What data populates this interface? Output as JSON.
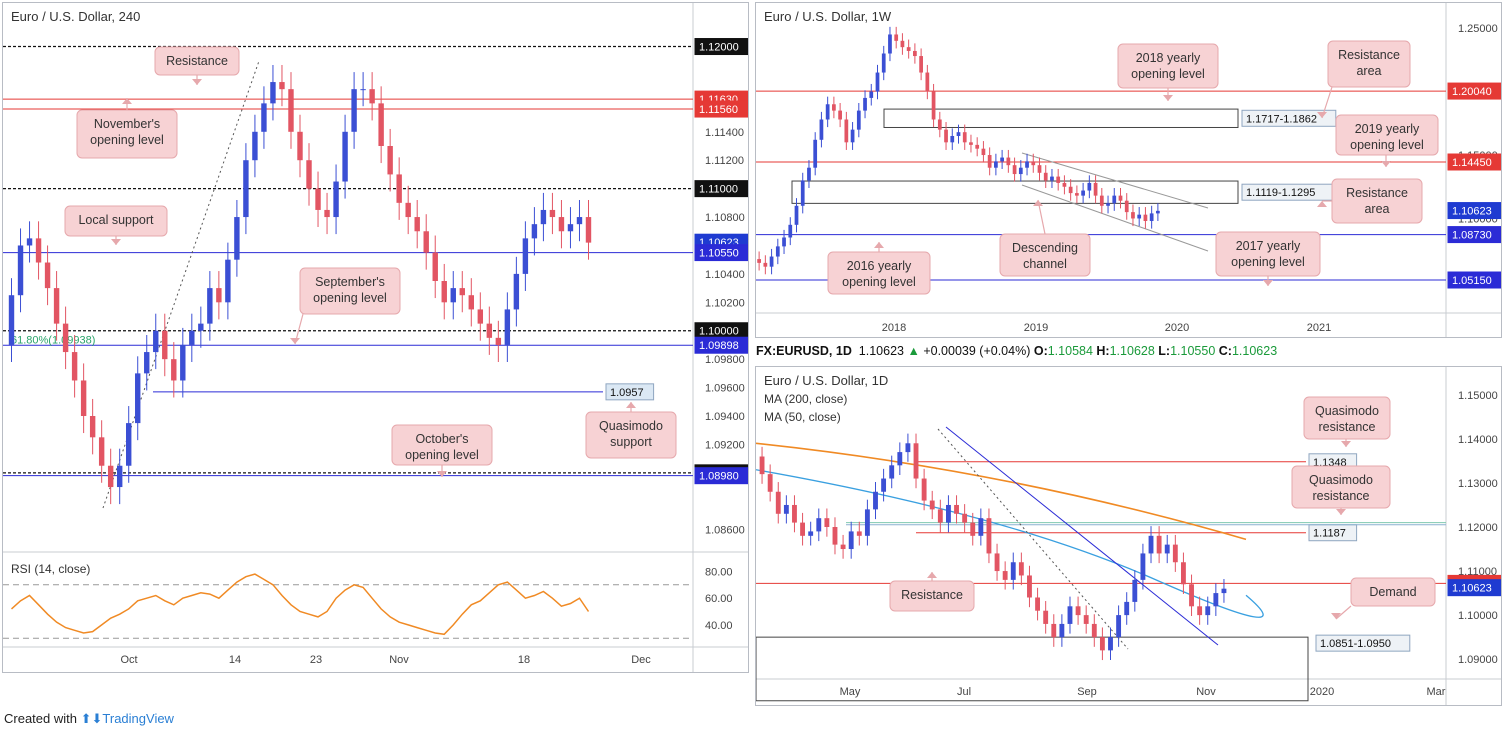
{
  "footer": {
    "created": "Created with",
    "brand": "TradingView"
  },
  "quote": {
    "symbol": "FX:EURUSD, 1D",
    "last": "1.10623",
    "change": "+0.00039 (+0.04%)",
    "o_label": "O:",
    "o": "1.10584",
    "h_label": "H:",
    "h": "1.10628",
    "l_label": "L:",
    "l": "1.10550",
    "c_label": "C:",
    "c": "1.10623"
  },
  "colors": {
    "red": "#e53935",
    "blue": "#2b2bd6",
    "candle_up": "#3b4fd4",
    "candle_down": "#e25563",
    "note_bg": "#f7d2d4",
    "rsi": "#f08a24",
    "ma200": "#f08a24",
    "ma50": "#3aa0e0"
  },
  "chart_data": [
    {
      "type": "candlestick",
      "title": "Euro / U.S. Dollar, 240",
      "ylim": [
        1.0845,
        1.1225
      ],
      "x_ticks": [
        "Oct",
        "14",
        "23",
        "Nov",
        "18",
        "Dec"
      ],
      "y_ticks": [
        "1.11400",
        "1.11200",
        "1.10800",
        "1.10400",
        "1.10200",
        "1.09800",
        "1.09600",
        "1.09400",
        "1.09200",
        "1.08600"
      ],
      "levels": [
        {
          "value": 1.12,
          "label": "1.12000",
          "style": "dotted-black"
        },
        {
          "value": 1.1163,
          "label": "1.11630",
          "style": "red"
        },
        {
          "value": 1.1156,
          "label": "1.11560",
          "style": "red"
        },
        {
          "value": 1.11,
          "label": "1.11000",
          "style": "dotted-black"
        },
        {
          "value": 1.10623,
          "label": "1.10623",
          "style": "price"
        },
        {
          "value": 1.1055,
          "label": "1.10550",
          "style": "blue"
        },
        {
          "value": 1.1,
          "label": "1.10000",
          "style": "dotted-black"
        },
        {
          "value": 1.09898,
          "label": "1.09898",
          "style": "blue"
        },
        {
          "value": 1.0957,
          "label": "1.0957",
          "style": "quasimodo"
        },
        {
          "value": 1.09,
          "label": "1.09000",
          "style": "dotted-black"
        },
        {
          "value": 1.0898,
          "label": "1.08980",
          "style": "blue"
        }
      ],
      "fib_label": "61.80%(1.09938)",
      "annotations": [
        "Resistance",
        "November's opening level",
        "Local support",
        "September's opening level",
        "Quasimodo support",
        "October's opening level"
      ],
      "closes": [
        1.1025,
        1.106,
        1.1065,
        1.1048,
        1.103,
        1.1005,
        1.0985,
        1.0965,
        1.094,
        1.0925,
        1.0905,
        1.089,
        1.0905,
        1.0935,
        1.097,
        1.0985,
        1.1,
        1.098,
        1.0965,
        1.099,
        1.1,
        1.1005,
        1.103,
        1.102,
        1.105,
        1.108,
        1.112,
        1.114,
        1.116,
        1.1175,
        1.117,
        1.114,
        1.112,
        1.11,
        1.1085,
        1.108,
        1.1105,
        1.114,
        1.117,
        1.117,
        1.116,
        1.113,
        1.111,
        1.109,
        1.108,
        1.107,
        1.1055,
        1.1035,
        1.102,
        1.103,
        1.1025,
        1.1015,
        1.1005,
        1.0995,
        1.099,
        1.1015,
        1.104,
        1.1065,
        1.1075,
        1.1085,
        1.108,
        1.107,
        1.1075,
        1.108,
        1.1062
      ],
      "rsi": {
        "label": "RSI (14, close)",
        "ylim": [
          25,
          90
        ],
        "ticks": [
          "80.00",
          "60.00",
          "40.00"
        ],
        "bands": [
          70,
          30
        ],
        "values": [
          52,
          58,
          62,
          55,
          48,
          42,
          38,
          36,
          34,
          35,
          40,
          45,
          48,
          52,
          58,
          60,
          62,
          58,
          55,
          60,
          62,
          64,
          63,
          60,
          66,
          72,
          76,
          78,
          74,
          70,
          62,
          55,
          50,
          48,
          46,
          50,
          60,
          66,
          70,
          68,
          60,
          52,
          46,
          42,
          40,
          38,
          36,
          34,
          33,
          40,
          48,
          55,
          58,
          64,
          70,
          72,
          66,
          60,
          62,
          65,
          60,
          54,
          56,
          60,
          50
        ]
      }
    },
    {
      "type": "candlestick",
      "title": "Euro / U.S. Dollar, 1W",
      "ylim": [
        1.0255,
        1.2635
      ],
      "x_ticks": [
        "2018",
        "2019",
        "2020",
        "2021"
      ],
      "y_ticks": [
        "1.25000",
        "1.20040",
        "1.15000",
        "1.10000",
        "1.05150"
      ],
      "levels": [
        {
          "value": 1.2004,
          "label": "1.20040",
          "style": "red"
        },
        {
          "value": 1.1445,
          "label": "1.14450",
          "style": "red"
        },
        {
          "value": 1.10623,
          "label": "1.10623",
          "style": "price"
        },
        {
          "value": 1.0873,
          "label": "1.08730",
          "style": "blue"
        },
        {
          "value": 1.0515,
          "label": "1.05150",
          "style": "blue"
        }
      ],
      "zones": [
        {
          "label": "1.1717-1.1862",
          "low": 1.1717,
          "high": 1.1862
        },
        {
          "label": "1.1119-1.1295",
          "low": 1.1119,
          "high": 1.1295
        }
      ],
      "annotations": [
        "2018 yearly opening level",
        "Resistance area",
        "2019 yearly opening level",
        "Resistance area",
        "Descending channel",
        "2016 yearly opening level",
        "2017 yearly opening level"
      ],
      "closes": [
        1.065,
        1.062,
        1.07,
        1.078,
        1.085,
        1.095,
        1.11,
        1.13,
        1.14,
        1.162,
        1.178,
        1.19,
        1.185,
        1.178,
        1.16,
        1.17,
        1.185,
        1.195,
        1.2,
        1.215,
        1.23,
        1.245,
        1.24,
        1.235,
        1.232,
        1.228,
        1.215,
        1.2,
        1.178,
        1.17,
        1.16,
        1.165,
        1.168,
        1.16,
        1.158,
        1.155,
        1.15,
        1.14,
        1.145,
        1.148,
        1.142,
        1.135,
        1.14,
        1.145,
        1.142,
        1.136,
        1.13,
        1.133,
        1.128,
        1.125,
        1.12,
        1.118,
        1.122,
        1.128,
        1.118,
        1.11,
        1.112,
        1.118,
        1.114,
        1.105,
        1.1,
        1.103,
        1.098,
        1.104,
        1.106
      ]
    },
    {
      "type": "candlestick",
      "title": "Euro / U.S. Dollar, 1D",
      "ma_labels": [
        "MA (200, close)",
        "MA (50, close)"
      ],
      "ylim": [
        1.0855,
        1.1545
      ],
      "x_ticks": [
        "May",
        "Jul",
        "Sep",
        "Nov",
        "2020",
        "Mar"
      ],
      "y_ticks": [
        "1.15000",
        "1.14000",
        "1.13000",
        "1.12000",
        "1.11000",
        "1.10000",
        "1.09000"
      ],
      "levels": [
        {
          "value": 1.1348,
          "label": "1.1348",
          "style": "red-box"
        },
        {
          "value": 1.1187,
          "label": "1.1187",
          "style": "red-box"
        },
        {
          "value": 1.1072,
          "label": "1.10720",
          "style": "red"
        },
        {
          "value": 1.10623,
          "label": "1.10623",
          "style": "price"
        }
      ],
      "zones": [
        {
          "label": "1.0851-1.0950",
          "low": 1.0851,
          "high": 1.095
        }
      ],
      "annotations": [
        "Quasimodo resistance",
        "Quasimodo resistance",
        "Resistance",
        "Demand"
      ],
      "closes": [
        1.132,
        1.128,
        1.123,
        1.125,
        1.121,
        1.118,
        1.119,
        1.122,
        1.12,
        1.116,
        1.115,
        1.119,
        1.118,
        1.124,
        1.128,
        1.131,
        1.134,
        1.137,
        1.139,
        1.131,
        1.126,
        1.124,
        1.121,
        1.125,
        1.123,
        1.121,
        1.118,
        1.122,
        1.114,
        1.11,
        1.108,
        1.112,
        1.109,
        1.104,
        1.101,
        1.098,
        1.095,
        1.098,
        1.102,
        1.1,
        1.098,
        1.095,
        1.092,
        1.095,
        1.1,
        1.103,
        1.108,
        1.114,
        1.118,
        1.114,
        1.116,
        1.112,
        1.107,
        1.102,
        1.1,
        1.102,
        1.105,
        1.106
      ],
      "ma200": {
        "start": 1.139,
        "end": 1.1172
      },
      "ma50": {
        "start": 1.133,
        "mid": 1.108,
        "end": 1.1045
      }
    }
  ]
}
